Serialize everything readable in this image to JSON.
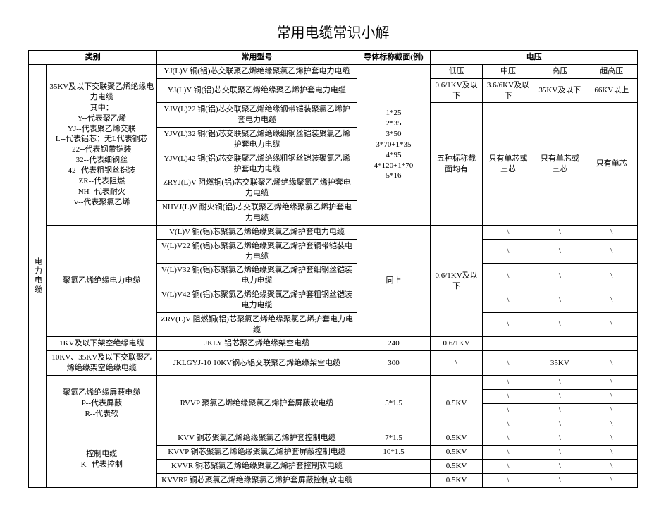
{
  "title": "常用电缆常识小解",
  "header": {
    "category": "类别",
    "model": "常用型号",
    "conductor": "导体标称截面(例)",
    "voltage": "电压",
    "v_low": "低压",
    "v_mid": "中压",
    "v_high": "高压",
    "v_ehv": "超高压"
  },
  "vert_label": "电力电缆",
  "groupA": {
    "cat": "35KV及以下交联聚乙烯绝缘电力电缆\n其中：\nY--代表聚乙烯\nYJ--代表聚乙烯交联\nL--代表铝芯；无L代表铜芯\n22--代表钢带铠装\n32--代表细钢丝\n42--代表粗钢丝铠装\nZR--代表阻燃\nNH--代表耐火\nV--代表聚氯乙烯",
    "rows": [
      "YJ(L)V  铜(铝)芯交联聚乙烯绝缘聚氯乙烯护套电力电缆",
      "YJ(L)Y 铜(铝)芯交联聚乙烯绝缘聚乙烯护套电力电缆",
      "YJV(L)22 铜(铝)芯交联聚乙烯绝缘钢带铠装聚氯乙烯护套电力电缆",
      "YJV(L)32 铜(铝)芯交联聚乙烯绝缘细钢丝铠装聚氯乙烯护套电力电缆",
      "YJV(L)42 铜(铝)芯交联聚乙烯绝缘粗钢丝铠装聚氯乙烯护套电力电缆",
      "ZRYJ(L)V  阻燃铜(铝)芯交联聚乙烯绝缘聚氯乙烯护套电力电缆",
      "NHYJ(L)V  耐火铜(铝)芯交联聚乙烯绝缘聚氯乙烯护套电力电缆"
    ],
    "conductor": "1*25\n2*35\n3*50\n3*70+1*35\n4*95\n4*120+1*70\n5*16",
    "v_low": "0.6/1KV及以下",
    "v_mid": "3.6/6KV及以下",
    "v_high": "35KV及以下",
    "v_ehv": "66KV以上",
    "v_low2": "五种标称截面均有",
    "v_mid2": "只有单芯或三芯",
    "v_high2": "只有单芯或三芯",
    "v_ehv2": "只有单芯"
  },
  "groupB": {
    "cat": "聚氯乙烯绝缘电力电缆",
    "rows": [
      "V(L)V  铜(铝)芯聚氯乙烯绝缘聚氯乙烯护套电力电缆",
      "V(L)V22 铜(铝)芯聚氯乙烯绝缘聚氯乙烯护套钢带铠装电力电缆",
      "V(L)V32  铜(铝)芯聚氯乙烯绝缘聚氯乙烯护套细钢丝铠装电力电缆",
      "V(L)V42  铜(铝)芯聚氯乙烯绝缘聚氯乙烯护套粗钢丝铠装电力电缆",
      "ZRV(L)V  阻燃铜(铝)芯聚氯乙烯绝缘聚氯乙烯护套电力电缆"
    ],
    "conductor": "同上",
    "v_low": "0.6/1KV及以下",
    "slash": "\\"
  },
  "row_jkly": {
    "cat": "1KV及以下架空绝缘电缆",
    "model": "JKLY   铝芯聚乙烯绝缘架空电缆",
    "conductor": "240",
    "v": "0.6/1KV"
  },
  "row_jklgyj": {
    "cat": "10KV、35KV及以下交联聚乙烯绝缘架空绝缘电缆",
    "model": "JKLGYJ-10  10KV钢芯铝交联聚乙烯绝缘架空电缆",
    "conductor": "300",
    "slash": "\\",
    "v_high": "35KV"
  },
  "groupC": {
    "cat": "聚氯乙烯绝缘屏蔽电缆\nP--代表屏蔽\nR--代表软",
    "model": "RVVP 聚氯乙烯绝缘聚氯乙烯护套屏蔽软电缆",
    "conductor": "5*1.5",
    "v_low": "0.5KV",
    "slash": "\\"
  },
  "groupD": {
    "cat": "控制电缆\nK--代表控制",
    "rows": [
      {
        "m": "KVV 铜芯聚氯乙烯绝缘聚氯乙烯护套控制电缆",
        "c": "7*1.5",
        "v": "0.5KV"
      },
      {
        "m": "KVVP 铜芯聚氯乙烯绝缘聚氯乙烯护套屏蔽控制电缆",
        "c": "10*1.5",
        "v": "0.5KV"
      },
      {
        "m": "KVVR 铜芯聚氯乙烯绝缘聚氯乙烯护套控制软电缆",
        "c": "",
        "v": "0.5KV"
      },
      {
        "m": "KVVRP 铜芯聚氯乙烯绝缘聚氯乙烯护套屏蔽控制软电缆",
        "c": "",
        "v": "0.5KV"
      }
    ],
    "slash": "\\"
  }
}
